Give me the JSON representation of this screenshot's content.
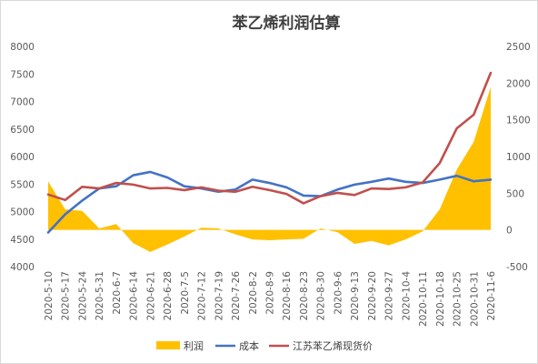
{
  "chart_data": {
    "type": "area",
    "title": "苯乙烯利润估算",
    "xlabel": "",
    "ylabel": "",
    "categories": [
      "2020-5-10",
      "2020-5-17",
      "2020-5-24",
      "2020-5-31",
      "2020-6-7",
      "2020-6-14",
      "2020-6-21",
      "2020-6-28",
      "2020-7-5",
      "2020-7-12",
      "2020-7-19",
      "2020-7-26",
      "2020-8-2",
      "2020-8-9",
      "2020-8-16",
      "2020-8-23",
      "2020-8-30",
      "2020-9-6",
      "2020-9-13",
      "2020-9-20",
      "2020-9-27",
      "2020-10-4",
      "2020-10-11",
      "2020-10-18",
      "2020-10-25",
      "2020-10-31",
      "2020-11-6"
    ],
    "left_axis": {
      "ylim": [
        4000,
        8000
      ],
      "ticks": [
        "4000",
        "4500",
        "5000",
        "5500",
        "6000",
        "6500",
        "7000",
        "7500",
        "8000"
      ]
    },
    "right_axis": {
      "ylim": [
        -500,
        2500
      ],
      "ticks": [
        "-500",
        "0",
        "500",
        "1000",
        "1500",
        "2000",
        "2500"
      ]
    },
    "series": [
      {
        "name": "利润",
        "type": "area",
        "axis": "right",
        "color": "#FFC000",
        "values": [
          660,
          280,
          260,
          20,
          80,
          -180,
          -300,
          -200,
          -90,
          30,
          20,
          -60,
          -130,
          -140,
          -130,
          -120,
          20,
          -30,
          -190,
          -150,
          -210,
          -130,
          -20,
          280,
          820,
          1200,
          1950
        ]
      },
      {
        "name": "成本",
        "type": "line",
        "axis": "left",
        "color": "#4472C4",
        "values": [
          4620,
          4950,
          5200,
          5420,
          5460,
          5660,
          5720,
          5620,
          5460,
          5420,
          5360,
          5400,
          5580,
          5520,
          5440,
          5290,
          5280,
          5400,
          5490,
          5540,
          5600,
          5540,
          5520,
          5580,
          5650,
          5550,
          5580
        ]
      },
      {
        "name": "江苏苯乙烯现货价",
        "type": "line",
        "axis": "left",
        "color": "#C0504D",
        "values": [
          5310,
          5210,
          5450,
          5420,
          5520,
          5490,
          5420,
          5430,
          5390,
          5440,
          5380,
          5360,
          5450,
          5390,
          5320,
          5150,
          5280,
          5340,
          5300,
          5420,
          5410,
          5440,
          5530,
          5880,
          6510,
          6760,
          7520
        ]
      }
    ],
    "legend_position": "bottom",
    "grid": false
  }
}
